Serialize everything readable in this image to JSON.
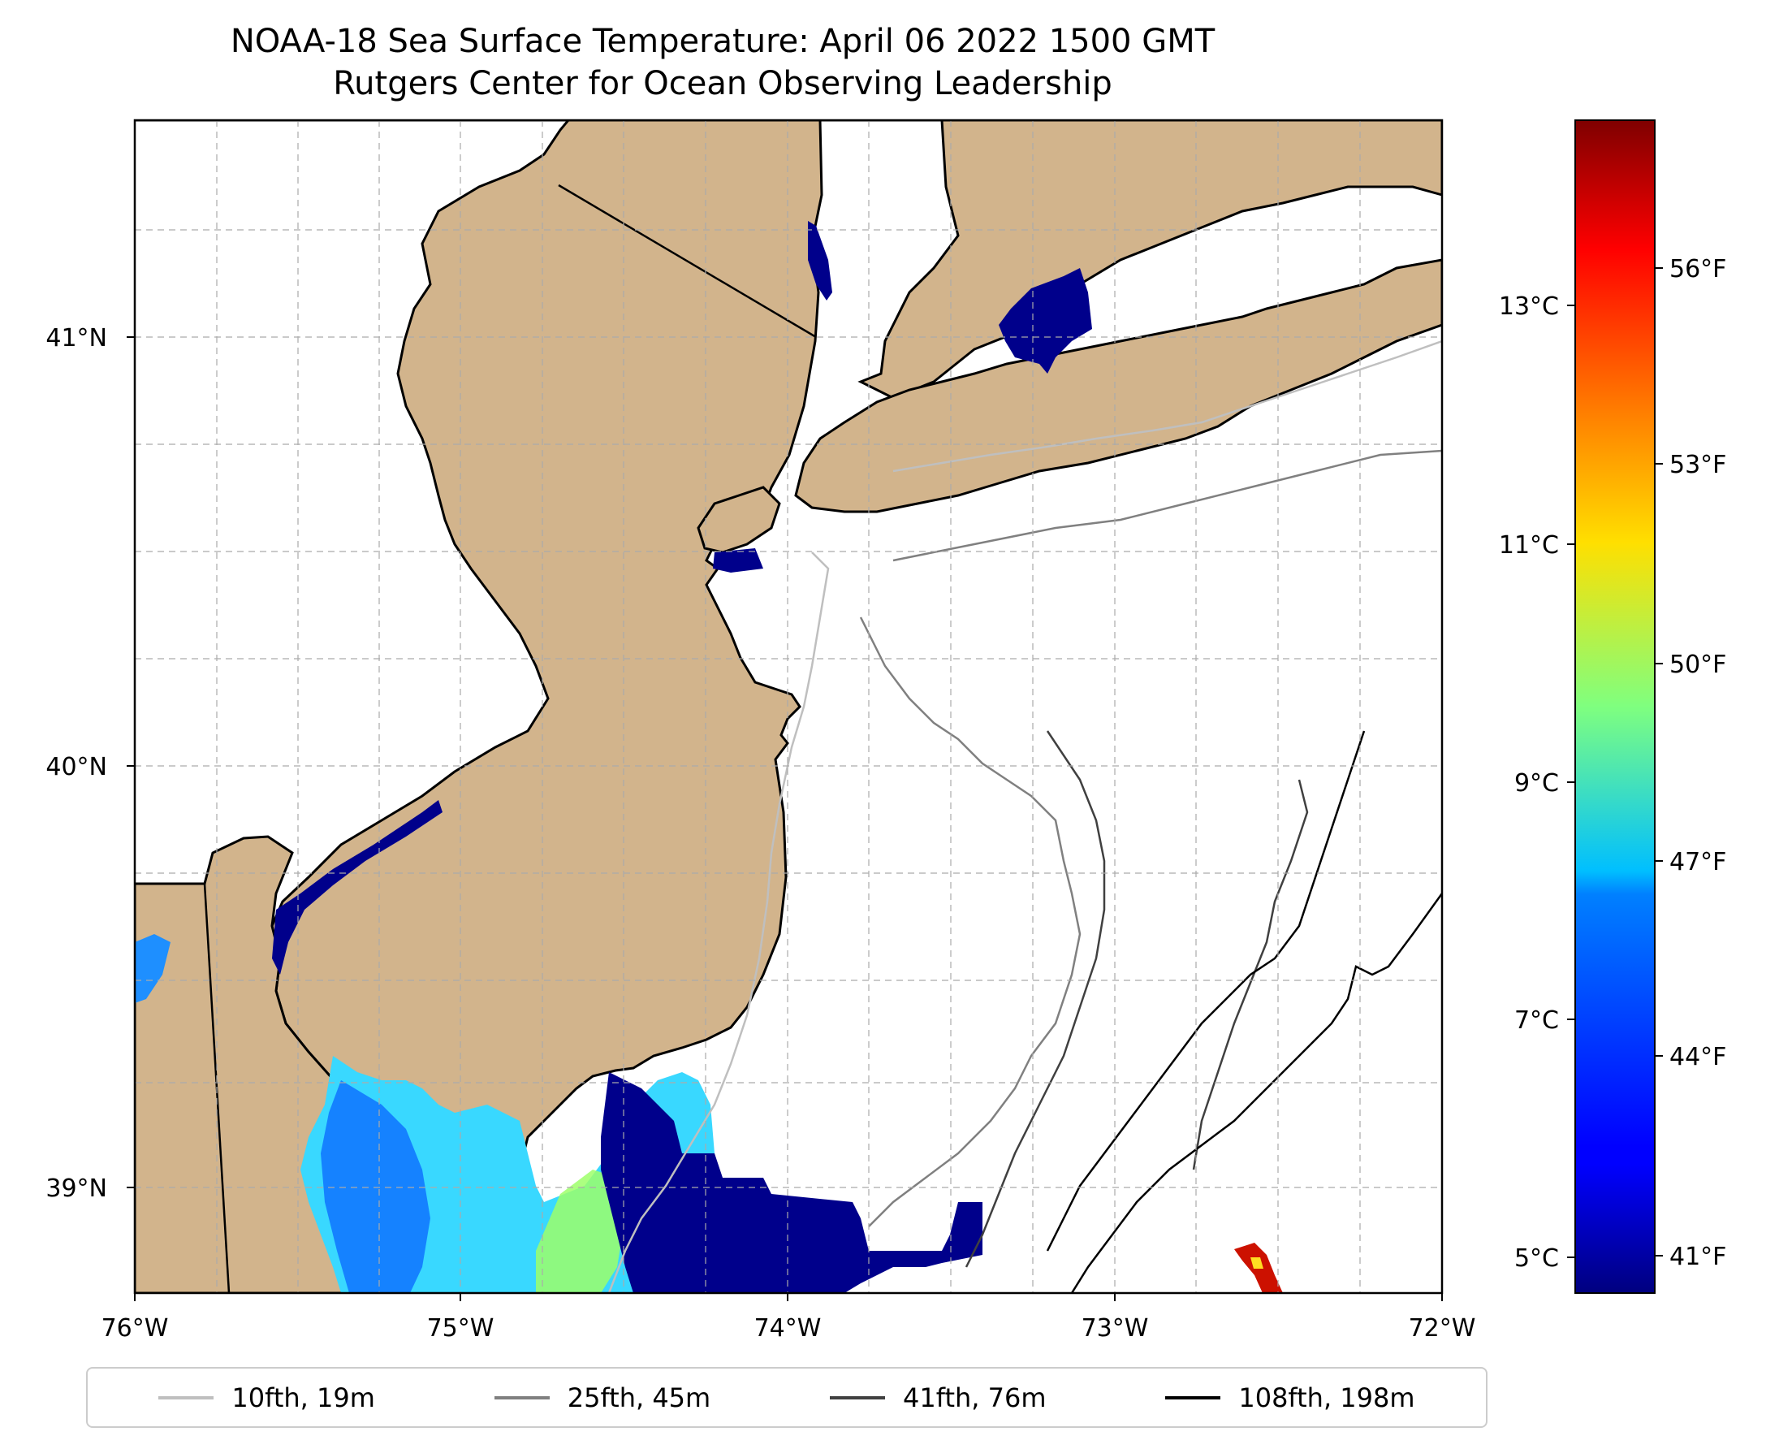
{
  "title": {
    "line1": "NOAA-18 Sea Surface Temperature: April 06 2022 1500 GMT",
    "line2": "Rutgers Center for Ocean Observing Leadership"
  },
  "map": {
    "land_color": "#d2b48c",
    "water_color": "#ffffff",
    "lon_range": [
      -76,
      -72
    ],
    "lat_range": [
      38.75,
      41.5
    ],
    "x_ticks": [
      "76°W",
      "75°W",
      "74°W",
      "73°W",
      "72°W"
    ],
    "y_ticks": [
      "41°N",
      "40°N",
      "39°N"
    ],
    "grid": true
  },
  "colorbar": {
    "colormap": "jet",
    "celsius_ticks": [
      "13°C",
      "11°C",
      "9°C",
      "7°C",
      "5°C"
    ],
    "fahrenheit_ticks": [
      "56°F",
      "53°F",
      "50°F",
      "47°F",
      "44°F",
      "41°F"
    ]
  },
  "legend": [
    {
      "label": "10fth, 19m",
      "color": "#bfbfbf"
    },
    {
      "label": "25fth, 45m",
      "color": "#808080"
    },
    {
      "label": "41fth, 76m",
      "color": "#404040"
    },
    {
      "label": "108fth, 198m",
      "color": "#000000"
    }
  ]
}
